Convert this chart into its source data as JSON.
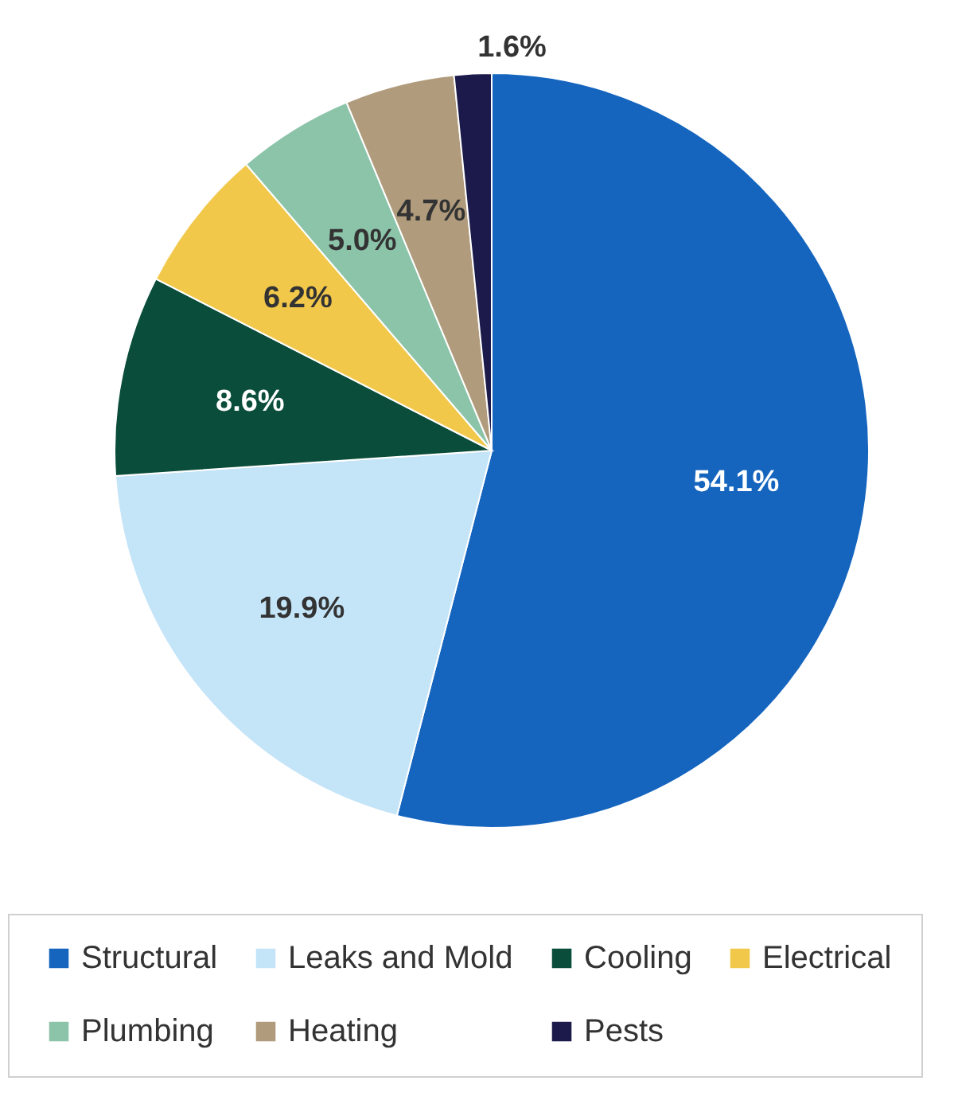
{
  "chart_data": {
    "type": "pie",
    "categories": [
      "Structural",
      "Leaks and Mold",
      "Cooling",
      "Electrical",
      "Plumbing",
      "Heating",
      "Pests"
    ],
    "values": [
      54.1,
      19.9,
      8.6,
      6.2,
      5.0,
      4.7,
      1.6
    ],
    "colors": [
      "#1565bf",
      "#c4e4f8",
      "#0a4d3b",
      "#f2c84b",
      "#8cc4aa",
      "#b09c7c",
      "#1c1a4a"
    ],
    "value_labels": [
      "54.1%",
      "19.9%",
      "8.6%",
      "6.2%",
      "5.0%",
      "4.7%",
      "1.6%"
    ],
    "legend": "bottom"
  }
}
